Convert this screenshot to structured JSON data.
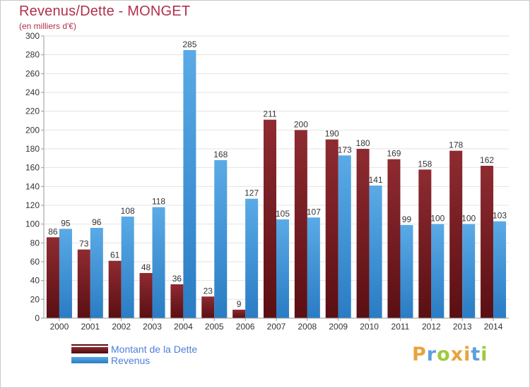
{
  "title": "Revenus/Dette - MONGET",
  "subtitle": "(en milliers d'€)",
  "logo": {
    "text": "Proxiti",
    "colors": [
      "#e8a33c",
      "#5da0db",
      "#9ccb3b",
      "#e8a33c",
      "#e8a33c",
      "#5da0db",
      "#9ccb3b"
    ]
  },
  "colors": {
    "dette": "#7a1e22",
    "revenus": "#3a8fd8",
    "title": "#b0304a"
  },
  "chart_data": {
    "type": "bar",
    "title": "Revenus/Dette - MONGET",
    "ylabel": "(en milliers d'€)",
    "xlabel": "",
    "ylim": [
      0,
      300
    ],
    "yticks": [
      0,
      20,
      40,
      60,
      80,
      100,
      120,
      140,
      160,
      180,
      200,
      220,
      240,
      260,
      280,
      300
    ],
    "grid": true,
    "legend": "bottom-left",
    "categories": [
      "2000",
      "2001",
      "2002",
      "2003",
      "2004",
      "2005",
      "2006",
      "2007",
      "2008",
      "2009",
      "2010",
      "2011",
      "2012",
      "2013",
      "2014"
    ],
    "series": [
      {
        "name": "Montant de la Dette",
        "color": "#7a1e22",
        "values": [
          86,
          73,
          61,
          48,
          36,
          23,
          9,
          211,
          200,
          190,
          180,
          169,
          158,
          178,
          162
        ]
      },
      {
        "name": "Revenus",
        "color": "#3a8fd8",
        "values": [
          95,
          96,
          108,
          118,
          285,
          168,
          127,
          105,
          107,
          173,
          141,
          99,
          100,
          100,
          103
        ]
      }
    ]
  }
}
